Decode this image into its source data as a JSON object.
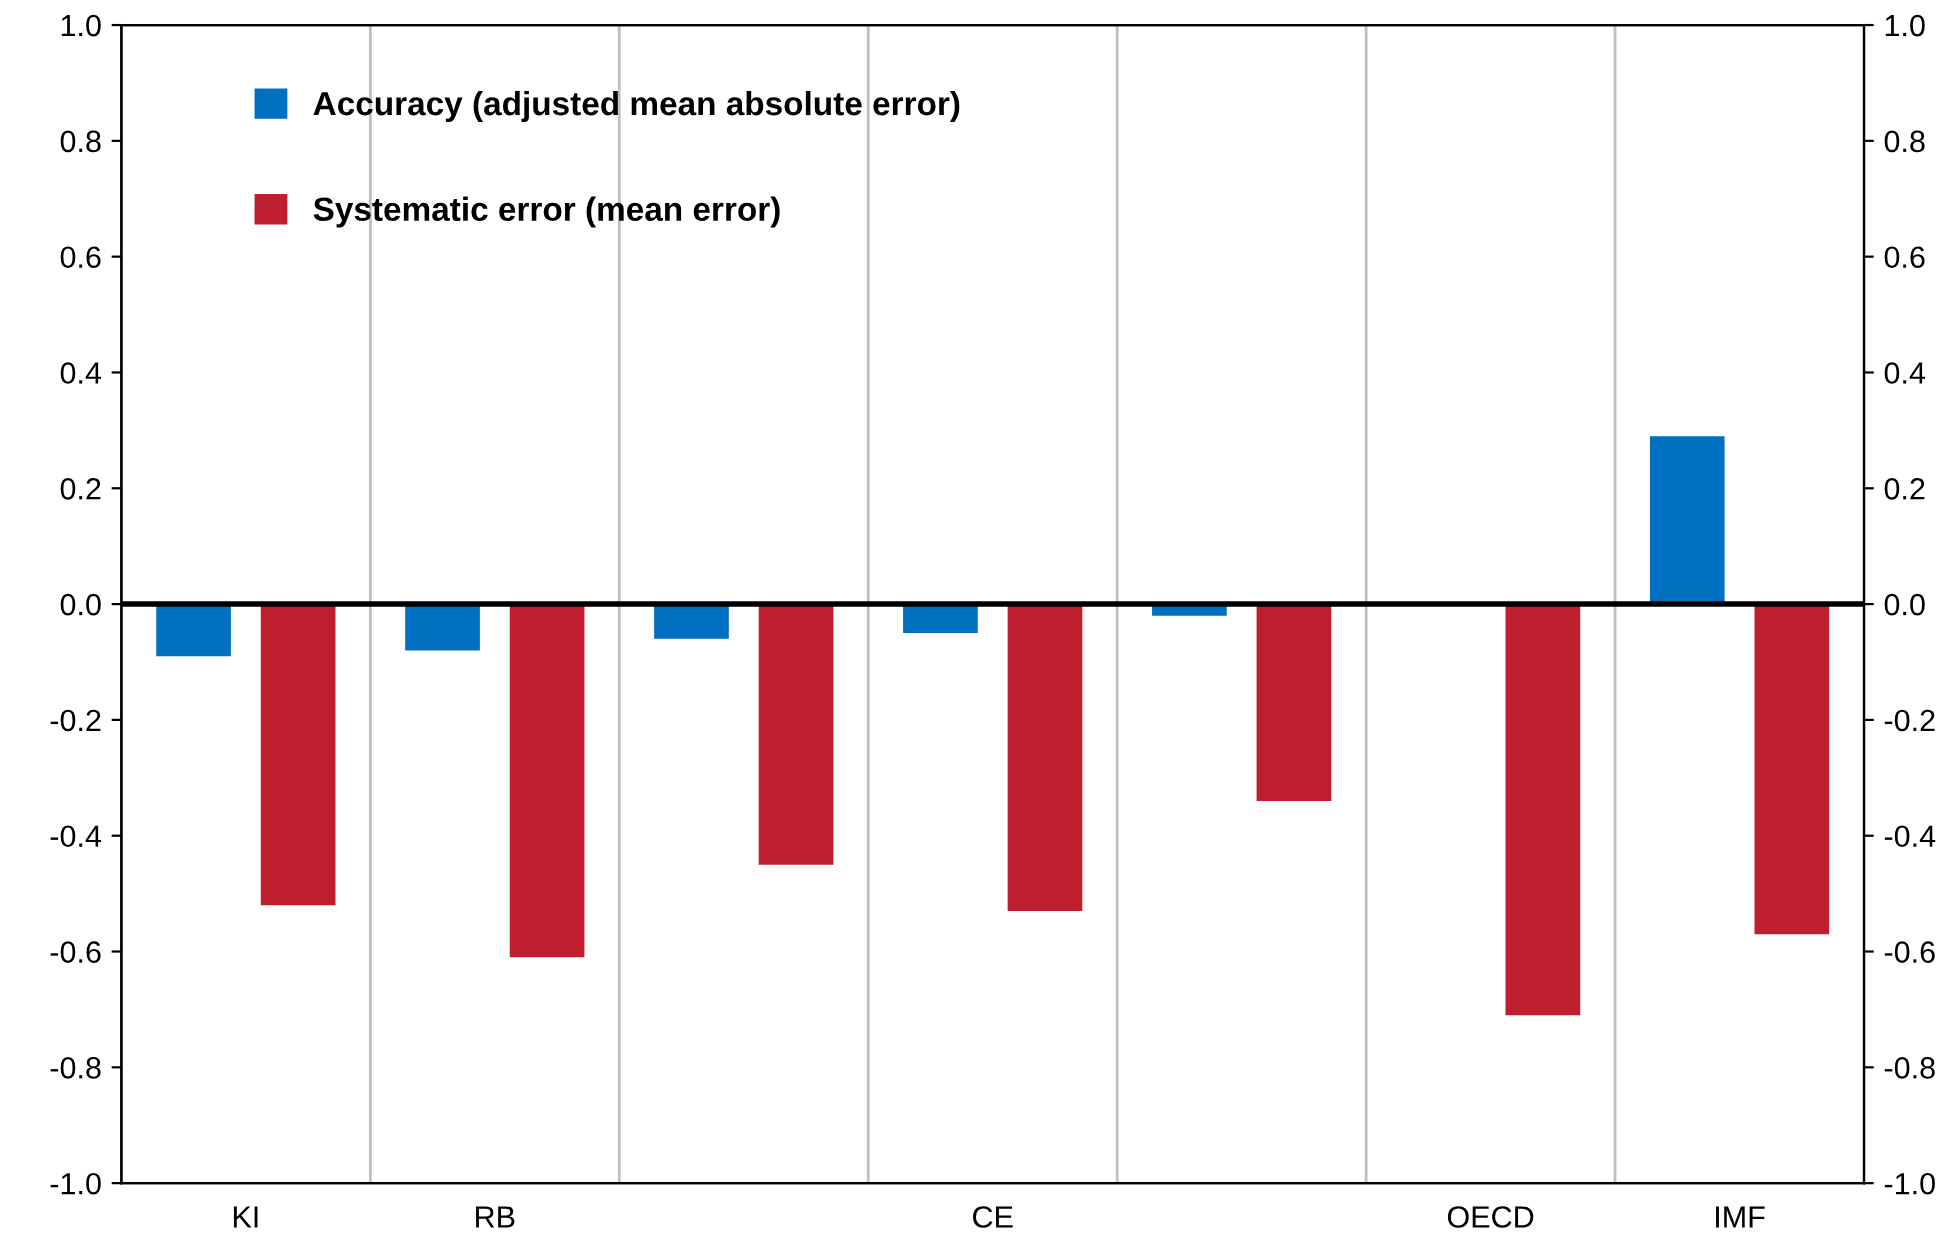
{
  "chart_data": {
    "type": "bar",
    "categories": [
      "KI",
      "RB",
      null,
      "CE",
      null,
      "OECD",
      "IMF"
    ],
    "series": [
      {
        "name": "Accuracy (adjusted mean absolute error)",
        "color": "#0070c0",
        "values": [
          -0.09,
          -0.08,
          -0.06,
          -0.05,
          -0.02,
          0.0,
          0.29
        ]
      },
      {
        "name": "Systematic error (mean error)",
        "color": "#be1e2d",
        "values": [
          -0.52,
          -0.61,
          -0.45,
          -0.53,
          -0.34,
          -0.71,
          -0.57
        ]
      }
    ],
    "ylim": [
      -1.0,
      1.0
    ],
    "yticks": [
      {
        "value": -1.0,
        "label": "-1.0"
      },
      {
        "value": -0.8,
        "label": "-0.8"
      },
      {
        "value": -0.6,
        "label": "-0.6"
      },
      {
        "value": -0.4,
        "label": "-0.4"
      },
      {
        "value": -0.2,
        "label": "-0.2"
      },
      {
        "value": 0.0,
        "label": "0.0"
      },
      {
        "value": 0.2,
        "label": "0.2"
      },
      {
        "value": 0.4,
        "label": "0.4"
      },
      {
        "value": 0.6,
        "label": "0.6"
      },
      {
        "value": 0.8,
        "label": "0.8"
      },
      {
        "value": 1.0,
        "label": "1.0"
      }
    ],
    "y2lim": [
      -1.0,
      1.0
    ],
    "y2ticks": [
      {
        "value": -1.0,
        "label": "-1.0"
      },
      {
        "value": -0.8,
        "label": "-0.8"
      },
      {
        "value": -0.6,
        "label": "-0.6"
      },
      {
        "value": -0.4,
        "label": "-0.4"
      },
      {
        "value": -0.2,
        "label": "-0.2"
      },
      {
        "value": 0.0,
        "label": "0.0"
      },
      {
        "value": 0.2,
        "label": "0.2"
      },
      {
        "value": 0.4,
        "label": "0.4"
      },
      {
        "value": 0.6,
        "label": "0.6"
      },
      {
        "value": 0.8,
        "label": "0.8"
      },
      {
        "value": 1.0,
        "label": "1.0"
      }
    ],
    "grid": "x",
    "legend": "top left"
  }
}
